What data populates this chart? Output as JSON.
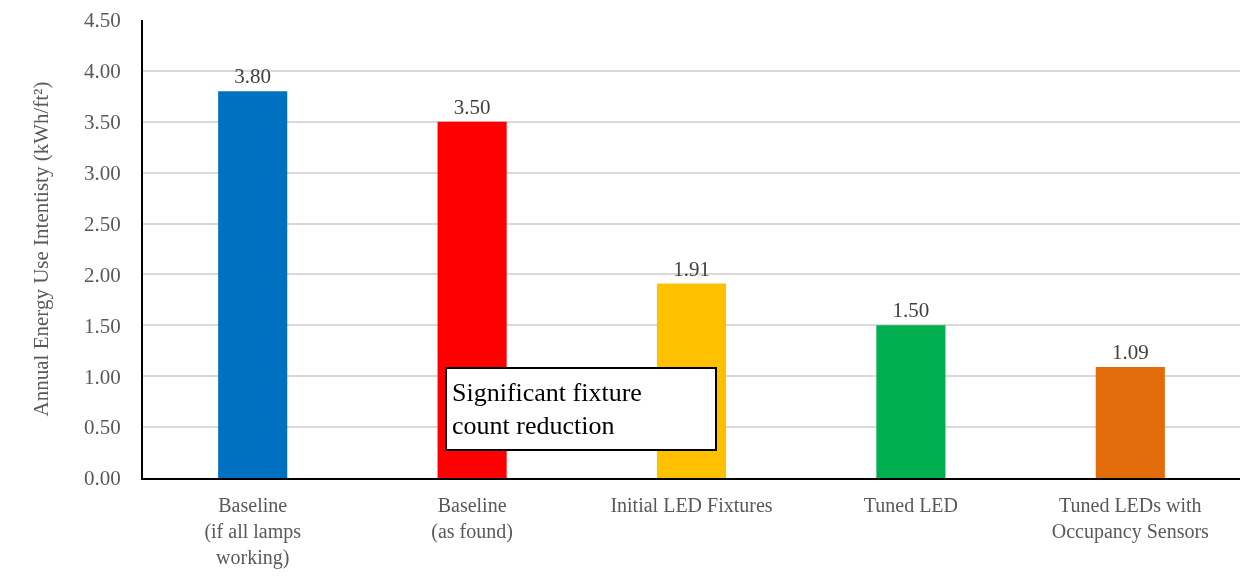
{
  "chart_data": {
    "type": "bar",
    "ylabel": "Annual Energy Use Intentisty (kWh/ft²)",
    "categories": [
      "Baseline\n(if all lamps\nworking)",
      "Baseline\n(as found)",
      "Initial LED Fixtures",
      "Tuned LED",
      "Tuned LEDs with\nOccupancy Sensors"
    ],
    "values": [
      3.8,
      3.5,
      1.91,
      1.5,
      1.09
    ],
    "value_labels": [
      "3.80",
      "3.50",
      "1.91",
      "1.50",
      "1.09"
    ],
    "colors": [
      "#0070c0",
      "#ff0000",
      "#ffc000",
      "#00b050",
      "#e36c0a"
    ],
    "ylim": [
      0,
      4.5
    ],
    "yticks": [
      {
        "value": 0,
        "label": "0.00"
      },
      {
        "value": 0.5,
        "label": "0.50"
      },
      {
        "value": 1,
        "label": "1.00"
      },
      {
        "value": 1.5,
        "label": "1.50"
      },
      {
        "value": 2,
        "label": "2.00"
      },
      {
        "value": 2.5,
        "label": "2.50"
      },
      {
        "value": 3,
        "label": "3.00"
      },
      {
        "value": 3.5,
        "label": "3.50"
      },
      {
        "value": 4,
        "label": "4.00"
      },
      {
        "value": 4.5,
        "label": "4.50"
      }
    ],
    "grid": "y",
    "annotations": [
      "Significant fixture\ncount reduction"
    ]
  }
}
